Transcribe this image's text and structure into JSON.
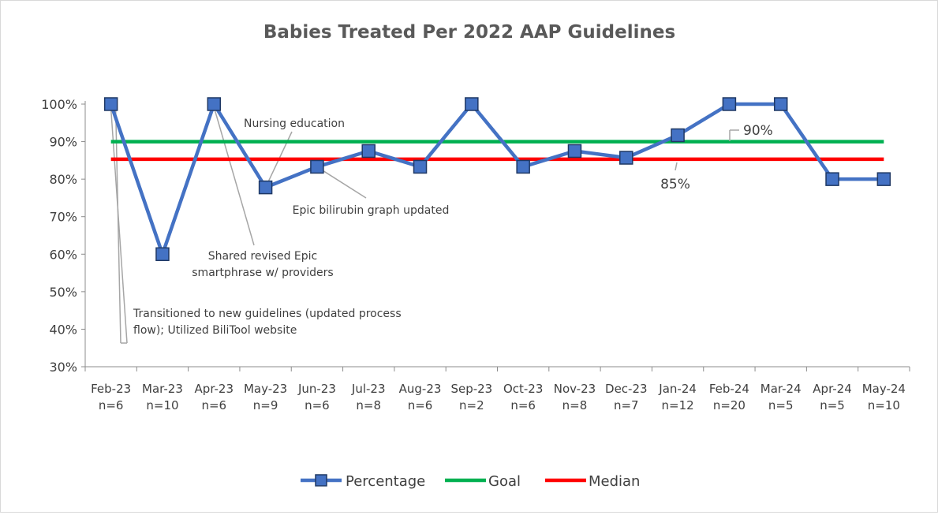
{
  "chart_data": {
    "type": "line",
    "title": "Babies Treated Per 2022 AAP Guidelines",
    "xlabel": "",
    "ylabel": "",
    "categories": [
      "Feb-23",
      "Mar-23",
      "Apr-23",
      "May-23",
      "Jun-23",
      "Jul-23",
      "Aug-23",
      "Sep-23",
      "Oct-23",
      "Nov-23",
      "Dec-23",
      "Jan-24",
      "Feb-24",
      "Mar-24",
      "Apr-24",
      "May-24"
    ],
    "sample_sizes": [
      "n=6",
      "n=10",
      "n=6",
      "n=9",
      "n=6",
      "n=8",
      "n=6",
      "n=2",
      "n=6",
      "n=8",
      "n=7",
      "n=12",
      "n=20",
      "n=5",
      "n=5",
      "n=10"
    ],
    "ylim": [
      30,
      100
    ],
    "yticks": [
      "30%",
      "40%",
      "50%",
      "60%",
      "70%",
      "80%",
      "90%",
      "100%"
    ],
    "grid": false,
    "legend_position": "bottom",
    "series": [
      {
        "name": "Percentage",
        "color": "#4472c4",
        "marker": "square",
        "values": [
          100,
          60,
          100,
          77.8,
          83.3,
          87.5,
          83.3,
          100,
          83.3,
          87.5,
          85.7,
          91.7,
          100,
          100,
          80,
          80
        ]
      },
      {
        "name": "Goal",
        "color": "#00b050",
        "values": [
          90,
          90,
          90,
          90,
          90,
          90,
          90,
          90,
          90,
          90,
          90,
          90,
          90,
          90,
          90,
          90
        ]
      },
      {
        "name": "Median",
        "color": "#ff0000",
        "values": [
          85.3,
          85.3,
          85.3,
          85.3,
          85.3,
          85.3,
          85.3,
          85.3,
          85.3,
          85.3,
          85.3,
          85.3,
          85.3,
          85.3,
          85.3,
          85.3
        ]
      }
    ],
    "data_labels": {
      "goal": "90%",
      "median": "85%"
    },
    "annotations": [
      {
        "lines": [
          "Nursing education"
        ],
        "target_index": 3
      },
      {
        "lines": [
          "Epic bilirubin graph updated"
        ],
        "target_index": 4
      },
      {
        "lines": [
          "Shared revised Epic",
          "smartphrase w/ providers"
        ],
        "target_index": 2
      },
      {
        "lines": [
          "Transitioned to new guidelines (updated process",
          "flow); Utilized BiliTool website"
        ],
        "target_index": 0
      }
    ]
  }
}
